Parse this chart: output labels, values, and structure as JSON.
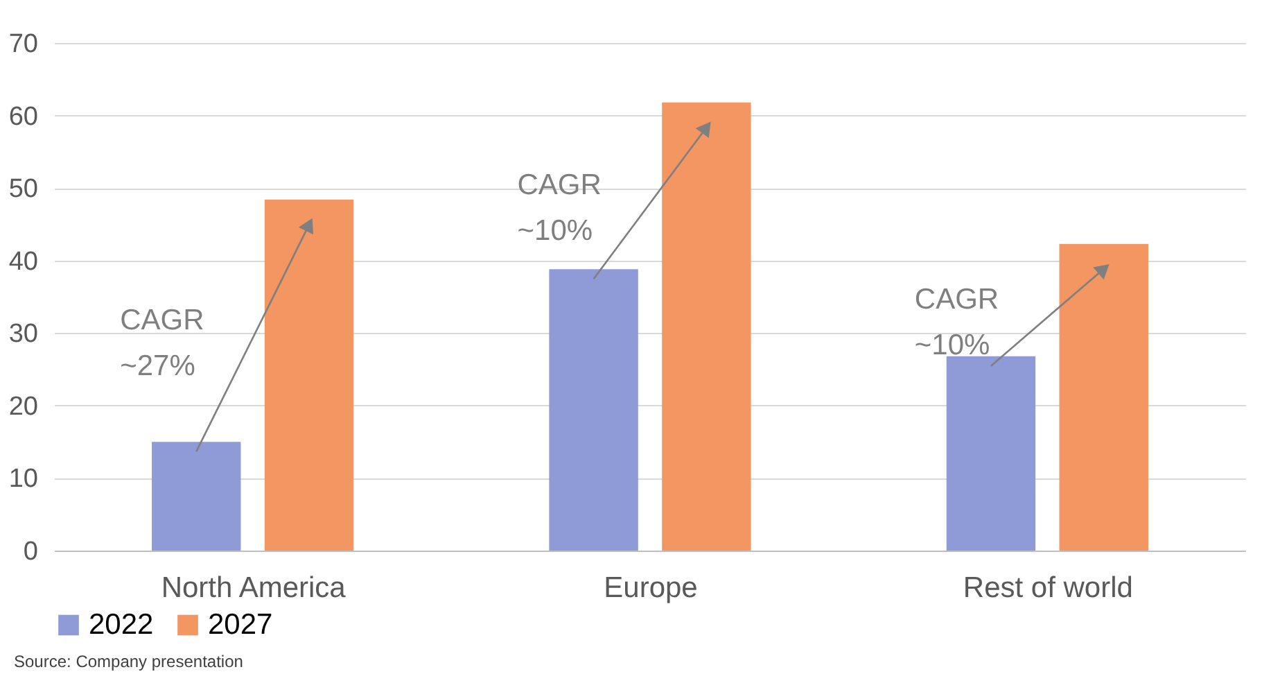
{
  "chart_data": {
    "type": "bar",
    "categories": [
      "North America",
      "Europe",
      "Rest of world"
    ],
    "series": [
      {
        "name": "2022",
        "color": "#8e9bd6",
        "values": [
          15,
          38.8,
          26.8
        ]
      },
      {
        "name": "2027",
        "color": "#f39662",
        "values": [
          48.4,
          61.8,
          42.3
        ]
      }
    ],
    "ylim": [
      0,
      70
    ],
    "yticks": [
      0,
      10,
      20,
      30,
      40,
      50,
      60,
      70
    ],
    "grid": "y",
    "legend": "bottom",
    "annotations": [
      "CAGR ~27%",
      "CAGR ~10%",
      "CAGR ~10%",
      "Source: Company presentation"
    ]
  }
}
